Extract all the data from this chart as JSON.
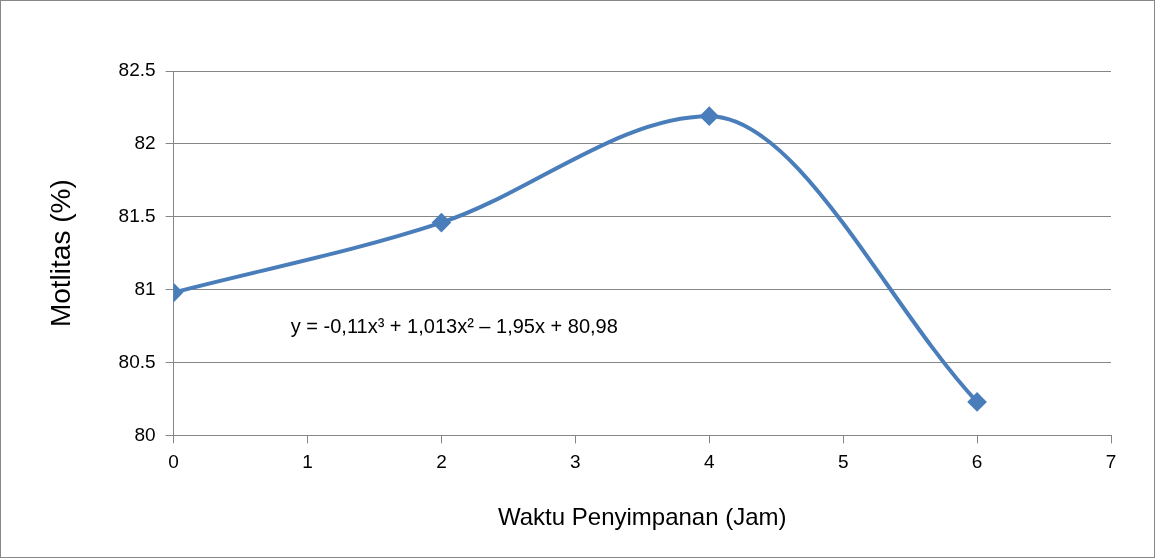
{
  "chart_data": {
    "type": "line",
    "xlabel": "Waktu Penyimpanan (Jam)",
    "ylabel": "Motlitas (%)",
    "x": [
      0,
      2,
      4,
      6
    ],
    "series": [
      {
        "color": "#4a7ebb",
        "values": [
          80.98,
          81.46,
          82.19,
          80.23
        ]
      }
    ],
    "xlim": [
      0,
      7
    ],
    "xticks": [
      0,
      1,
      2,
      3,
      4,
      5,
      6,
      7
    ],
    "ylim": [
      80,
      82.5
    ],
    "yticks": [
      80,
      80.5,
      81,
      81.5,
      82,
      82.5
    ],
    "grid": "y",
    "legend": false,
    "marker": "diamond",
    "line_style": "solid",
    "annotations": [
      "y = -0,11x³ + 1,013x² – 1,95x + 80,98"
    ]
  }
}
